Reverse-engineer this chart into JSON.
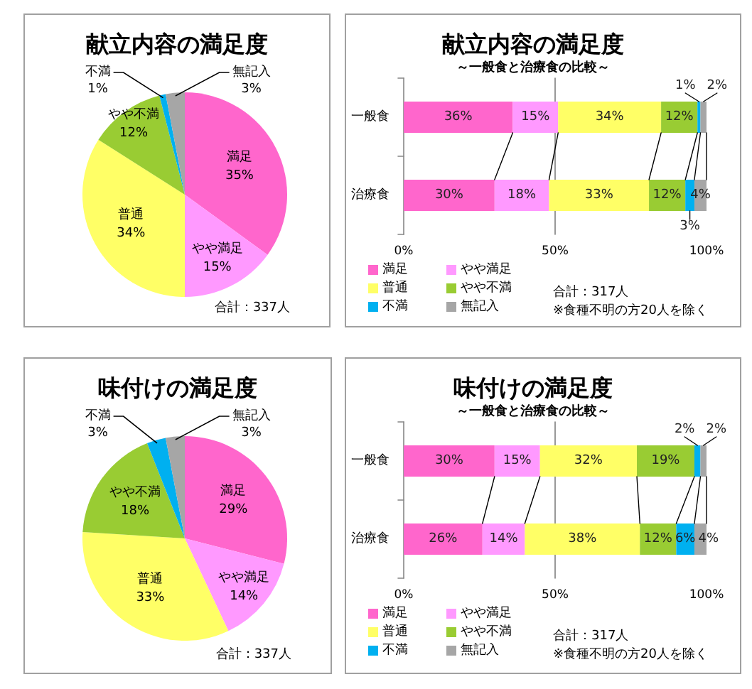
{
  "chart_data": [
    {
      "type": "pie",
      "title": "献立内容の満足度",
      "categories": [
        "満足",
        "やや満足",
        "普通",
        "やや不満",
        "不満",
        "無記入"
      ],
      "values": [
        35,
        15,
        34,
        12,
        1,
        3
      ],
      "value_labels": [
        "35%",
        "15%",
        "34%",
        "12%",
        "1%",
        "3%"
      ],
      "colors": [
        "#ff66cc",
        "#ff99ff",
        "#ffff66",
        "#99cc33",
        "#00b0f0",
        "#a6a6a6"
      ],
      "annotations": [
        "合計：337人"
      ]
    },
    {
      "type": "bar",
      "orientation": "horizontal",
      "stacked": true,
      "title": "献立内容の満足度",
      "subtitle": "～一般食と治療食の比較～",
      "categories": [
        "一般食",
        "治療食"
      ],
      "series": [
        {
          "name": "満足",
          "color": "#ff66cc",
          "values": [
            36,
            30
          ],
          "value_labels": [
            "36%",
            "30%"
          ]
        },
        {
          "name": "やや満足",
          "color": "#ff99ff",
          "values": [
            15,
            18
          ],
          "value_labels": [
            "15%",
            "18%"
          ]
        },
        {
          "name": "普通",
          "color": "#ffff66",
          "values": [
            34,
            33
          ],
          "value_labels": [
            "34%",
            "33%"
          ]
        },
        {
          "name": "やや不満",
          "color": "#99cc33",
          "values": [
            12,
            12
          ],
          "value_labels": [
            "12%",
            "12%"
          ]
        },
        {
          "name": "不満",
          "color": "#00b0f0",
          "values": [
            1,
            3
          ],
          "value_labels": [
            "1%",
            "3%"
          ]
        },
        {
          "name": "無記入",
          "color": "#a6a6a6",
          "values": [
            2,
            4
          ],
          "value_labels": [
            "2%",
            "4%"
          ]
        }
      ],
      "xlim": [
        0,
        100
      ],
      "xticks": [
        {
          "value": 0,
          "label": "0%"
        },
        {
          "value": 50,
          "label": "50%"
        },
        {
          "value": 100,
          "label": "100%"
        }
      ],
      "grid": "x",
      "legend": "bottom",
      "annotations": [
        "合計：317人",
        "※食種不明の方20人を除く"
      ]
    },
    {
      "type": "pie",
      "title": "味付けの満足度",
      "categories": [
        "満足",
        "やや満足",
        "普通",
        "やや不満",
        "不満",
        "無記入"
      ],
      "values": [
        29,
        14,
        33,
        18,
        3,
        3
      ],
      "value_labels": [
        "29%",
        "14%",
        "33%",
        "18%",
        "3%",
        "3%"
      ],
      "colors": [
        "#ff66cc",
        "#ff99ff",
        "#ffff66",
        "#99cc33",
        "#00b0f0",
        "#a6a6a6"
      ],
      "annotations": [
        "合計：337人"
      ]
    },
    {
      "type": "bar",
      "orientation": "horizontal",
      "stacked": true,
      "title": "味付けの満足度",
      "subtitle": "～一般食と治療食の比較～",
      "categories": [
        "一般食",
        "治療食"
      ],
      "series": [
        {
          "name": "満足",
          "color": "#ff66cc",
          "values": [
            30,
            26
          ],
          "value_labels": [
            "30%",
            "26%"
          ]
        },
        {
          "name": "やや満足",
          "color": "#ff99ff",
          "values": [
            15,
            14
          ],
          "value_labels": [
            "15%",
            "14%"
          ]
        },
        {
          "name": "普通",
          "color": "#ffff66",
          "values": [
            32,
            38
          ],
          "value_labels": [
            "32%",
            "38%"
          ]
        },
        {
          "name": "やや不満",
          "color": "#99cc33",
          "values": [
            19,
            12
          ],
          "value_labels": [
            "19%",
            "12%"
          ]
        },
        {
          "name": "不満",
          "color": "#00b0f0",
          "values": [
            2,
            6
          ],
          "value_labels": [
            "2%",
            "6%"
          ]
        },
        {
          "name": "無記入",
          "color": "#a6a6a6",
          "values": [
            2,
            4
          ],
          "value_labels": [
            "2%",
            "4%"
          ]
        }
      ],
      "xlim": [
        0,
        100
      ],
      "xticks": [
        {
          "value": 0,
          "label": "0%"
        },
        {
          "value": 50,
          "label": "50%"
        },
        {
          "value": 100,
          "label": "100%"
        }
      ],
      "grid": "x",
      "legend": "bottom",
      "annotations": [
        "合計：317人",
        "※食種不明の方20人を除く"
      ]
    }
  ]
}
